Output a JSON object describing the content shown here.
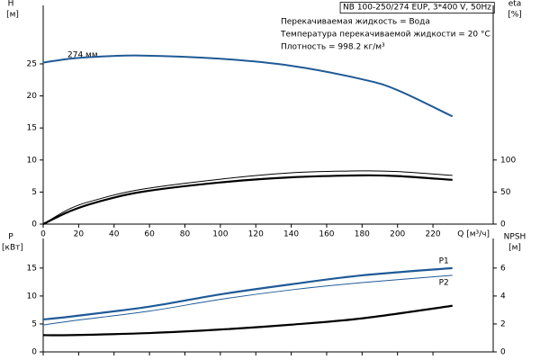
{
  "chart_data": [
    {
      "type": "line",
      "title": "NB 100-250/274 EUP, 3*400 V, 50Hz",
      "notes": [
        "Перекачиваемая жидкость = Вода",
        "Температура перекачиваемой жидкости = 20 °C",
        "Плотность = 998.2 кг/м³"
      ],
      "curve_label": "274 мм",
      "ylabel": "H",
      "yunit": "[м]",
      "y2label": "eta",
      "y2unit": "[%]",
      "xlabel": "Q [м³/ч]",
      "xlim": [
        0,
        254
      ],
      "xticks": [
        0,
        20,
        40,
        60,
        80,
        100,
        120,
        140,
        160,
        180,
        200,
        220
      ],
      "ylim": [
        0,
        33
      ],
      "yticks": [
        0,
        5,
        10,
        15,
        20,
        25
      ],
      "y2lim": [
        0,
        330
      ],
      "y2ticks": [
        0,
        50,
        100
      ],
      "x": [
        0,
        15,
        30,
        55,
        100,
        140,
        180,
        200,
        231
      ],
      "series": [
        {
          "color": "#1f5a96",
          "values": [
            25.2,
            25.8,
            26.1,
            26.3,
            25.8,
            24.7,
            22.6,
            20.9,
            16.8
          ]
        },
        {
          "color": "#000000",
          "axis": "y2",
          "values": [
            0,
            24,
            38,
            54,
            70,
            80,
            83,
            82,
            76
          ]
        },
        {
          "color": "#000000",
          "axis": "y2",
          "values": [
            0,
            20,
            34,
            50,
            65,
            73,
            76,
            75,
            69
          ]
        }
      ]
    },
    {
      "type": "line",
      "ylabel": "P",
      "yunit": "[кВт]",
      "y2label": "NPSH",
      "y2unit": "[м]",
      "xlim": [
        0,
        254
      ],
      "xticks": [
        0,
        20,
        40,
        60,
        80,
        100,
        120,
        140,
        160,
        180,
        200,
        220
      ],
      "ylim": [
        0,
        19
      ],
      "yticks": [
        0,
        5,
        10,
        15
      ],
      "y2lim": [
        0,
        7.6
      ],
      "y2ticks": [
        0,
        2,
        4,
        6
      ],
      "x": [
        0,
        15,
        60,
        100,
        140,
        180,
        231
      ],
      "series": [
        {
          "name": "P1",
          "color": "#1f5a96",
          "values": [
            5.8,
            6.3,
            8.1,
            10.3,
            12.1,
            13.7,
            15.0
          ]
        },
        {
          "name": "P2",
          "color": "#1f5a96",
          "values": [
            4.8,
            5.5,
            7.3,
            9.4,
            11.1,
            12.4,
            13.7
          ]
        },
        {
          "color": "#000000",
          "axis": "y2",
          "values": [
            1.2,
            1.2,
            1.35,
            1.6,
            1.95,
            2.4,
            3.3
          ]
        }
      ]
    }
  ]
}
